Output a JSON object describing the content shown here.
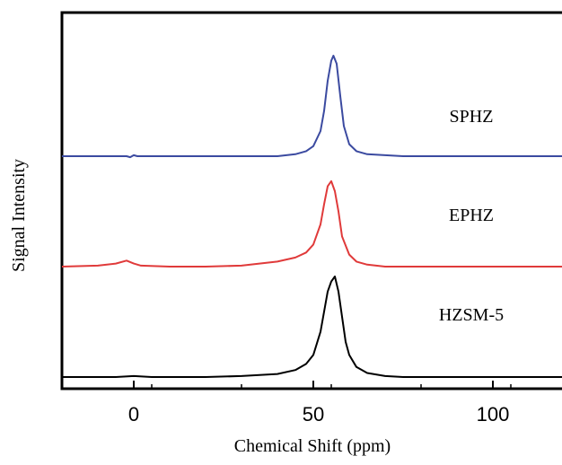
{
  "chart_data": {
    "type": "line",
    "xlabel": "Chemical Shift (ppm)",
    "ylabel": "Signal Intensity",
    "xlim": [
      -20,
      120
    ],
    "x_ticks": [
      0,
      50,
      100
    ],
    "y_ticks": [],
    "grid": false,
    "legend": "none",
    "series": [
      {
        "name": "SPHZ",
        "color": "#3b4aa0",
        "offset": 2.0,
        "points": [
          [
            -20,
            0
          ],
          [
            -2,
            0
          ],
          [
            -1,
            -0.01
          ],
          [
            0,
            0.01
          ],
          [
            1,
            0
          ],
          [
            20,
            0
          ],
          [
            40,
            0
          ],
          [
            45,
            0.02
          ],
          [
            48,
            0.05
          ],
          [
            50,
            0.1
          ],
          [
            52,
            0.25
          ],
          [
            53,
            0.45
          ],
          [
            54,
            0.75
          ],
          [
            55,
            0.95
          ],
          [
            55.6,
            1.0
          ],
          [
            56.5,
            0.92
          ],
          [
            57.5,
            0.6
          ],
          [
            58.5,
            0.3
          ],
          [
            60,
            0.12
          ],
          [
            62,
            0.05
          ],
          [
            65,
            0.02
          ],
          [
            70,
            0.01
          ],
          [
            75,
            0
          ],
          [
            90,
            0
          ],
          [
            110,
            0
          ],
          [
            120,
            0
          ]
        ]
      },
      {
        "name": "EPHZ",
        "color": "#e03a3a",
        "offset": 1.0,
        "points": [
          [
            -20,
            0
          ],
          [
            -10,
            0.01
          ],
          [
            -5,
            0.03
          ],
          [
            -2,
            0.06
          ],
          [
            0,
            0.03
          ],
          [
            2,
            0.01
          ],
          [
            10,
            0
          ],
          [
            20,
            0
          ],
          [
            30,
            0.01
          ],
          [
            40,
            0.05
          ],
          [
            45,
            0.09
          ],
          [
            48,
            0.14
          ],
          [
            50,
            0.22
          ],
          [
            52,
            0.42
          ],
          [
            53,
            0.62
          ],
          [
            54,
            0.8
          ],
          [
            55,
            0.85
          ],
          [
            56,
            0.75
          ],
          [
            57,
            0.55
          ],
          [
            58,
            0.3
          ],
          [
            60,
            0.12
          ],
          [
            62,
            0.05
          ],
          [
            65,
            0.02
          ],
          [
            70,
            0
          ],
          [
            90,
            0
          ],
          [
            120,
            0
          ]
        ]
      },
      {
        "name": "HZSM-5",
        "color": "#000000",
        "offset": 0.0,
        "points": [
          [
            -20,
            0
          ],
          [
            -5,
            0
          ],
          [
            0,
            0.01
          ],
          [
            5,
            0
          ],
          [
            20,
            0
          ],
          [
            30,
            0.01
          ],
          [
            40,
            0.03
          ],
          [
            45,
            0.07
          ],
          [
            48,
            0.13
          ],
          [
            50,
            0.22
          ],
          [
            52,
            0.45
          ],
          [
            53,
            0.65
          ],
          [
            54,
            0.85
          ],
          [
            55,
            0.95
          ],
          [
            56,
            1.0
          ],
          [
            57,
            0.85
          ],
          [
            58,
            0.6
          ],
          [
            59,
            0.35
          ],
          [
            60,
            0.22
          ],
          [
            62,
            0.1
          ],
          [
            65,
            0.04
          ],
          [
            70,
            0.01
          ],
          [
            75,
            0
          ],
          [
            90,
            0
          ],
          [
            120,
            0
          ]
        ]
      }
    ]
  }
}
